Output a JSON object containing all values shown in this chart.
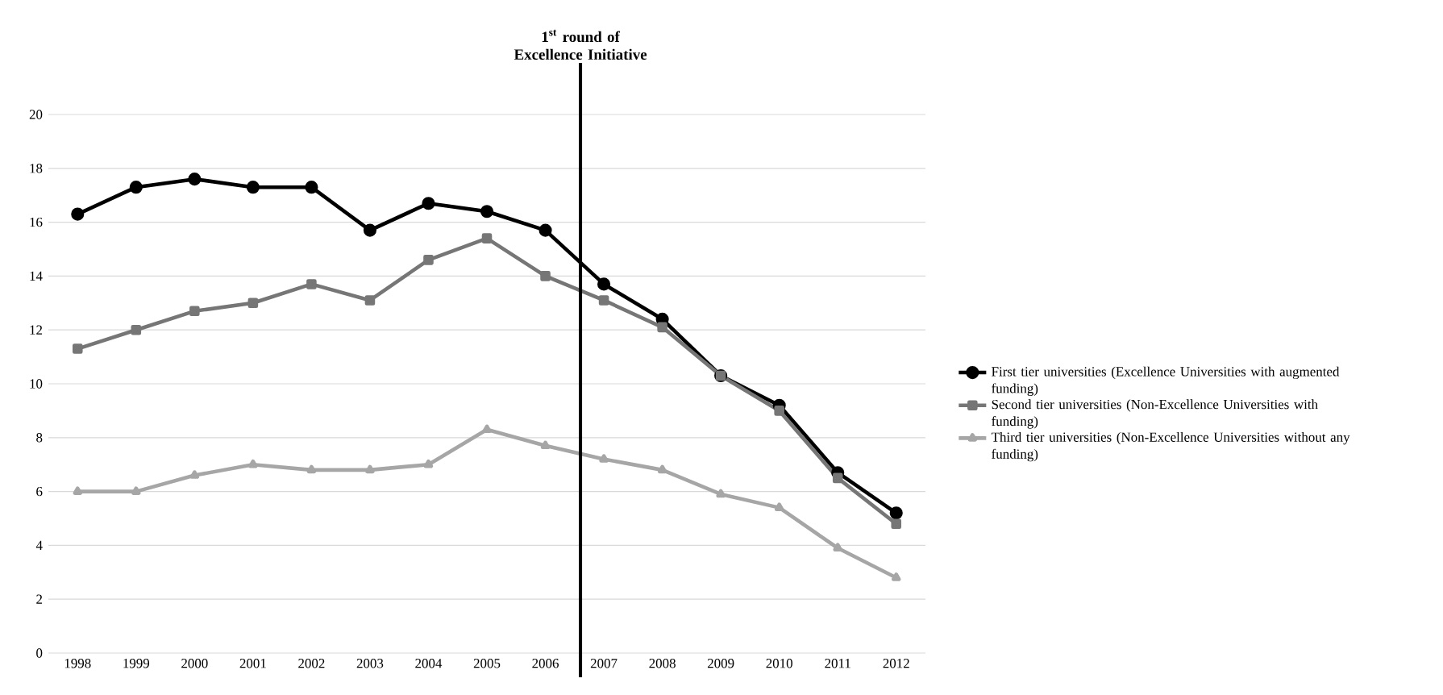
{
  "chart_data": {
    "type": "line",
    "x": [
      1998,
      1999,
      2000,
      2001,
      2002,
      2003,
      2004,
      2005,
      2006,
      2007,
      2008,
      2009,
      2010,
      2011,
      2012
    ],
    "xlim": [
      1997.5,
      2012.5
    ],
    "xticks": [
      1998,
      1999,
      2000,
      2001,
      2002,
      2003,
      2004,
      2005,
      2006,
      2007,
      2008,
      2009,
      2010,
      2011,
      2012
    ],
    "ylim": [
      0,
      20
    ],
    "yticks": [
      0,
      2,
      4,
      6,
      8,
      10,
      12,
      14,
      16,
      18,
      20
    ],
    "grid": "y",
    "legend": "right",
    "series": [
      {
        "name": "First tier universities (Excellence Universities with augmented funding)",
        "color": "#000000",
        "marker": "circle",
        "values": [
          16.3,
          17.3,
          17.6,
          17.3,
          17.3,
          15.7,
          16.7,
          16.4,
          15.7,
          13.7,
          12.4,
          10.3,
          9.2,
          6.7,
          5.2
        ]
      },
      {
        "name": "Second tier universities (Non-Excellence Universities with funding)",
        "color": "#767676",
        "marker": "square",
        "values": [
          11.3,
          12.0,
          12.7,
          13.0,
          13.7,
          13.1,
          14.6,
          15.4,
          14.0,
          13.1,
          12.1,
          10.3,
          9.0,
          6.5,
          4.8
        ]
      },
      {
        "name": "Third tier universities (Non-Excellence Universities without any funding)",
        "color": "#a6a6a6",
        "marker": "triangle",
        "values": [
          6.0,
          6.0,
          6.6,
          7.0,
          6.8,
          6.8,
          7.0,
          8.3,
          7.7,
          7.2,
          6.8,
          5.9,
          5.4,
          3.9,
          2.8
        ]
      }
    ],
    "ref_lines": [
      {
        "axis": "x",
        "value": 2006.6,
        "label": "1$^{st}$ round of Excellence Initiative",
        "color": "#000000"
      }
    ]
  }
}
